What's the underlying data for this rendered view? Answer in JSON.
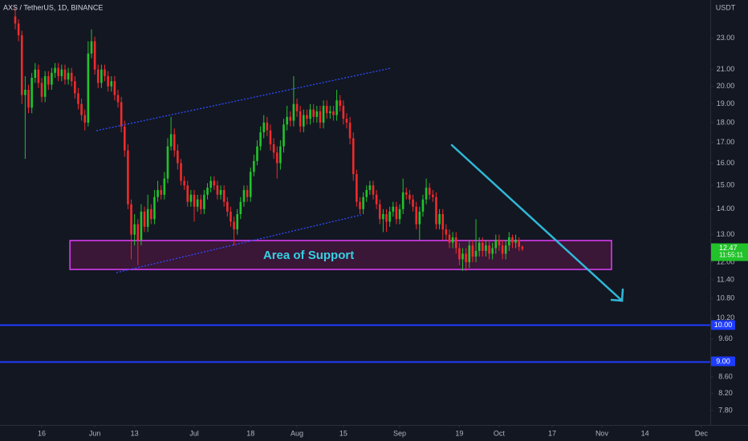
{
  "chart_data": {
    "type": "candlestick",
    "title": "AXS / TetherUS, 1D, BINANCE",
    "y_unit": "USDT",
    "log_scale": true,
    "up_color": "#22c32a",
    "down_color": "#ef2b2b",
    "background": "#131722",
    "xlim": [
      123.4,
      337.7
    ],
    "ylim": [
      7.48,
      25.7
    ],
    "xticks": [
      {
        "value": 136,
        "label": "16"
      },
      {
        "value": 152,
        "label": "Jun"
      },
      {
        "value": 164,
        "label": "13"
      },
      {
        "value": 182,
        "label": "Jul"
      },
      {
        "value": 199,
        "label": "18"
      },
      {
        "value": 213,
        "label": "Aug"
      },
      {
        "value": 227,
        "label": "15"
      },
      {
        "value": 244,
        "label": "Sep"
      },
      {
        "value": 262,
        "label": "19"
      },
      {
        "value": 274,
        "label": "Oct"
      },
      {
        "value": 290,
        "label": "17"
      },
      {
        "value": 305,
        "label": "Nov"
      },
      {
        "value": 318,
        "label": "14"
      },
      {
        "value": 335,
        "label": "Dec"
      }
    ],
    "yticks": [
      {
        "value": 23,
        "label": "23.00"
      },
      {
        "value": 21,
        "label": "21.00"
      },
      {
        "value": 20,
        "label": "20.00"
      },
      {
        "value": 19,
        "label": "19.00"
      },
      {
        "value": 18,
        "label": "18.00"
      },
      {
        "value": 17,
        "label": "17.00"
      },
      {
        "value": 16,
        "label": "16.00"
      },
      {
        "value": 15,
        "label": "15.00"
      },
      {
        "value": 14,
        "label": "14.00"
      },
      {
        "value": 13,
        "label": "13.00"
      },
      {
        "value": 12,
        "label": "12.00"
      },
      {
        "value": 11.4,
        "label": "11.40"
      },
      {
        "value": 10.8,
        "label": "10.80"
      },
      {
        "value": 10.2,
        "label": "10.20"
      },
      {
        "value": 9.6,
        "label": "9.60"
      },
      {
        "value": 8.6,
        "label": "8.60"
      },
      {
        "value": 8.2,
        "label": "8.20"
      },
      {
        "value": 7.8,
        "label": "7.80"
      }
    ],
    "hlines": [
      {
        "value": 10,
        "label": "10.00",
        "color": "#1e3cff"
      },
      {
        "value": 9,
        "label": "9.00",
        "color": "#1e3cff"
      }
    ],
    "last_price": {
      "value": 12.47,
      "label": "12.47",
      "countdown": "11:55:11"
    },
    "support_zone": {
      "label": "Area of Support",
      "xlim": [
        144.5,
        307.9
      ],
      "ylim": [
        11.75,
        12.78
      ]
    },
    "x": [
      128,
      129,
      130,
      131,
      132,
      133,
      134,
      135,
      136,
      137,
      138,
      139,
      140,
      141,
      142,
      143,
      144,
      145,
      146,
      147,
      148,
      149,
      150,
      151,
      152,
      153,
      154,
      155,
      156,
      157,
      158,
      159,
      160,
      161,
      162,
      163,
      164,
      165,
      166,
      167,
      168,
      169,
      170,
      171,
      172,
      173,
      174,
      175,
      176,
      177,
      178,
      179,
      180,
      181,
      182,
      183,
      184,
      185,
      186,
      187,
      188,
      189,
      190,
      191,
      192,
      193,
      194,
      195,
      196,
      197,
      198,
      199,
      200,
      201,
      202,
      203,
      204,
      205,
      206,
      207,
      208,
      209,
      210,
      211,
      212,
      213,
      214,
      215,
      216,
      217,
      218,
      219,
      220,
      221,
      222,
      223,
      224,
      225,
      226,
      227,
      228,
      229,
      230,
      231,
      232,
      233,
      234,
      235,
      236,
      237,
      238,
      239,
      240,
      241,
      242,
      243,
      244,
      245,
      246,
      247,
      248,
      249,
      250,
      251,
      252,
      253,
      254,
      255,
      256,
      257,
      258,
      259,
      260,
      261,
      262,
      263,
      264,
      265,
      266,
      267,
      268,
      269,
      270,
      271,
      272,
      273,
      274,
      275,
      276,
      277,
      278,
      279,
      280,
      281
    ],
    "open": [
      24.5,
      24.0,
      23.2,
      19.5,
      19.8,
      18.8,
      20.5,
      21.0,
      20.2,
      19.4,
      20.6,
      20.1,
      20.8,
      21.1,
      20.6,
      21.0,
      20.4,
      20.8,
      20.3,
      19.6,
      19.0,
      18.4,
      18.0,
      22.0,
      22.8,
      21.0,
      20.2,
      21.0,
      20.6,
      20.0,
      20.3,
      19.5,
      19.1,
      17.8,
      16.6,
      14.2,
      13.0,
      13.4,
      12.8,
      13.9,
      13.3,
      14.0,
      13.6,
      14.5,
      14.8,
      14.6,
      15.3,
      16.8,
      17.4,
      16.6,
      16.0,
      15.2,
      15.0,
      14.3,
      14.6,
      14.1,
      14.4,
      14.0,
      14.6,
      14.9,
      15.2,
      15.0,
      14.6,
      14.8,
      14.3,
      13.9,
      13.5,
      13.2,
      13.8,
      14.3,
      14.8,
      14.5,
      15.6,
      16.1,
      16.8,
      17.5,
      18.0,
      17.6,
      16.9,
      16.5,
      16.0,
      16.8,
      17.9,
      18.3,
      18.1,
      19.0,
      18.6,
      17.8,
      18.4,
      18.2,
      18.7,
      18.3,
      18.6,
      18.0,
      18.9,
      18.5,
      18.6,
      18.4,
      19.2,
      18.9,
      18.2,
      18.0,
      17.2,
      15.5,
      14.3,
      14.0,
      14.5,
      14.8,
      15.0,
      14.6,
      14.2,
      13.6,
      13.8,
      13.5,
      13.9,
      14.1,
      13.6,
      14.0,
      14.7,
      14.6,
      14.4,
      14.1,
      13.4,
      13.9,
      14.4,
      14.9,
      14.6,
      14.5,
      13.4,
      13.8,
      13.2,
      13.0,
      12.7,
      12.9,
      12.5,
      12.1,
      12.3,
      12.0,
      12.6,
      12.2,
      12.4,
      12.7,
      12.4,
      12.6,
      12.3,
      12.5,
      12.8,
      12.6,
      12.3,
      12.6,
      12.9,
      12.7,
      12.8,
      12.55
    ],
    "high": [
      25.2,
      24.3,
      23.5,
      20.6,
      20.1,
      20.8,
      21.4,
      21.3,
      20.5,
      20.9,
      20.9,
      21.1,
      21.4,
      21.4,
      21.3,
      21.3,
      21.1,
      21.1,
      20.6,
      19.9,
      19.3,
      18.7,
      22.8,
      23.6,
      23.1,
      21.3,
      21.3,
      21.3,
      20.9,
      20.6,
      20.6,
      19.8,
      19.4,
      18.1,
      16.9,
      14.4,
      13.8,
      13.6,
      14.2,
      14.1,
      14.6,
      14.2,
      14.8,
      15.2,
      15.0,
      15.6,
      17.2,
      18.3,
      17.7,
      16.9,
      16.2,
      15.4,
      15.2,
      14.8,
      14.8,
      14.6,
      14.6,
      14.8,
      15.1,
      15.4,
      15.4,
      15.2,
      15.0,
      15.0,
      14.5,
      14.1,
      13.7,
      14.0,
      14.5,
      15.0,
      15.0,
      15.8,
      16.4,
      17.1,
      17.8,
      18.4,
      18.3,
      17.9,
      17.2,
      16.8,
      17.1,
      18.2,
      18.9,
      18.6,
      20.6,
      19.3,
      18.9,
      18.7,
      18.7,
      19.0,
      19.0,
      18.9,
      18.9,
      19.2,
      19.2,
      18.9,
      18.9,
      19.8,
      19.5,
      19.2,
      18.5,
      18.3,
      17.5,
      15.7,
      14.5,
      14.7,
      15.0,
      15.2,
      15.2,
      14.8,
      14.4,
      14.0,
      14.0,
      14.1,
      14.3,
      14.3,
      14.2,
      15.3,
      14.9,
      14.8,
      14.6,
      14.3,
      14.1,
      14.6,
      15.3,
      15.1,
      14.8,
      14.7,
      14.0,
      14.0,
      13.4,
      13.2,
      13.1,
      13.1,
      12.7,
      12.5,
      12.5,
      12.8,
      12.8,
      13.6,
      12.9,
      12.9,
      12.8,
      12.8,
      12.7,
      13.0,
      13.0,
      12.8,
      12.8,
      13.1,
      13.0,
      13.0,
      12.9,
      12.6
    ],
    "low": [
      23.6,
      22.8,
      19.0,
      16.2,
      18.5,
      18.5,
      20.2,
      19.9,
      19.1,
      19.1,
      19.8,
      19.8,
      20.5,
      20.3,
      20.3,
      20.1,
      20.1,
      20.0,
      19.3,
      18.7,
      18.1,
      17.6,
      17.8,
      21.7,
      20.7,
      19.9,
      19.9,
      20.3,
      19.7,
      19.7,
      19.2,
      18.8,
      17.5,
      16.3,
      14.0,
      12.1,
      12.6,
      11.9,
      12.6,
      13.1,
      13.1,
      13.4,
      13.4,
      14.3,
      14.4,
      14.4,
      15.1,
      16.6,
      16.3,
      15.7,
      15.0,
      14.8,
      14.1,
      14.1,
      13.5,
      13.9,
      13.8,
      13.8,
      14.4,
      14.7,
      14.8,
      14.4,
      14.4,
      14.1,
      13.7,
      13.3,
      12.6,
      13.0,
      13.6,
      14.1,
      14.3,
      14.3,
      15.4,
      15.9,
      16.6,
      17.2,
      17.3,
      16.6,
      16.2,
      15.3,
      15.7,
      16.5,
      17.6,
      17.8,
      17.8,
      18.3,
      17.5,
      17.5,
      17.9,
      17.9,
      18.0,
      18.0,
      17.7,
      17.7,
      18.2,
      18.2,
      18.1,
      18.1,
      18.6,
      17.9,
      17.7,
      16.9,
      15.2,
      14.1,
      13.8,
      13.8,
      14.3,
      14.6,
      14.4,
      14.0,
      13.4,
      13.1,
      13.1,
      13.3,
      13.7,
      13.4,
      13.4,
      13.8,
      14.4,
      14.2,
      13.9,
      13.2,
      12.8,
      13.7,
      14.2,
      14.4,
      14.3,
      13.2,
      13.2,
      12.8,
      12.8,
      12.5,
      12.5,
      12.3,
      11.9,
      11.7,
      11.7,
      11.8,
      12.0,
      12.0,
      12.2,
      12.2,
      12.2,
      12.1,
      12.1,
      12.3,
      12.4,
      12.1,
      12.1,
      12.4,
      12.5,
      12.5,
      12.4,
      12.4
    ],
    "close": [
      24.0,
      23.2,
      19.5,
      19.8,
      18.8,
      20.5,
      21.0,
      20.2,
      19.4,
      20.6,
      20.1,
      20.8,
      21.1,
      20.6,
      21.0,
      20.4,
      20.8,
      20.3,
      19.6,
      19.0,
      18.4,
      18.0,
      22.0,
      22.8,
      21.0,
      20.2,
      21.0,
      20.6,
      20.0,
      20.3,
      19.5,
      19.1,
      17.8,
      16.6,
      14.2,
      13.0,
      13.4,
      12.8,
      13.9,
      13.3,
      14.0,
      13.6,
      14.5,
      14.8,
      14.6,
      15.3,
      16.8,
      17.4,
      16.6,
      16.0,
      15.2,
      15.0,
      14.3,
      14.6,
      14.1,
      14.4,
      14.0,
      14.6,
      14.9,
      15.2,
      15.0,
      14.6,
      14.8,
      14.3,
      13.9,
      13.5,
      13.2,
      13.8,
      14.3,
      14.8,
      14.5,
      15.6,
      16.1,
      16.8,
      17.5,
      18.0,
      17.6,
      16.9,
      16.5,
      16.0,
      16.8,
      17.9,
      18.3,
      18.1,
      19.0,
      18.6,
      17.8,
      18.4,
      18.2,
      18.7,
      18.3,
      18.6,
      18.0,
      18.9,
      18.5,
      18.6,
      18.4,
      19.2,
      18.9,
      18.2,
      18.0,
      17.2,
      15.5,
      14.3,
      14.0,
      14.5,
      14.8,
      15.0,
      14.6,
      14.2,
      13.6,
      13.8,
      13.5,
      13.9,
      14.1,
      13.6,
      14.0,
      14.7,
      14.6,
      14.4,
      14.1,
      13.4,
      13.9,
      14.4,
      14.9,
      14.6,
      14.5,
      13.4,
      13.8,
      13.2,
      13.0,
      12.7,
      12.9,
      12.5,
      12.1,
      12.3,
      12.0,
      12.6,
      12.2,
      12.4,
      12.7,
      12.4,
      12.6,
      12.3,
      12.5,
      12.8,
      12.6,
      12.3,
      12.6,
      12.9,
      12.7,
      12.8,
      12.55,
      12.47
    ]
  }
}
